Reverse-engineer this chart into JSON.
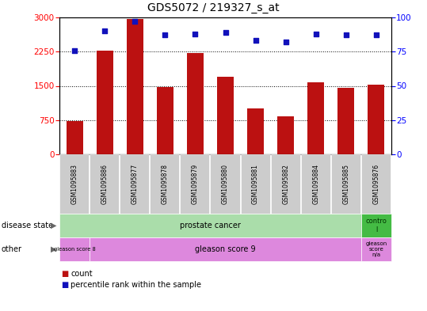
{
  "title": "GDS5072 / 219327_s_at",
  "samples": [
    "GSM1095883",
    "GSM1095886",
    "GSM1095877",
    "GSM1095878",
    "GSM1095879",
    "GSM1095880",
    "GSM1095881",
    "GSM1095882",
    "GSM1095884",
    "GSM1095885",
    "GSM1095876"
  ],
  "counts": [
    720,
    2270,
    2960,
    1480,
    2220,
    1700,
    1000,
    830,
    1580,
    1460,
    1520
  ],
  "percentiles": [
    76,
    90,
    97,
    87,
    88,
    89,
    83,
    82,
    88,
    87,
    87
  ],
  "ylim_left": [
    0,
    3000
  ],
  "ylim_right": [
    0,
    100
  ],
  "yticks_left": [
    0,
    750,
    1500,
    2250,
    3000
  ],
  "yticks_right": [
    0,
    25,
    50,
    75,
    100
  ],
  "bar_color": "#bb1111",
  "dot_color": "#1111bb",
  "disease_state_color": "#aaddaa",
  "disease_state_control_color": "#44bb44",
  "other_color": "#dd88dd",
  "tick_label_bg": "#cccccc",
  "legend_items": [
    {
      "label": "count",
      "color": "#bb1111"
    },
    {
      "label": "percentile rank within the sample",
      "color": "#1111bb"
    }
  ],
  "background_color": "#ffffff"
}
